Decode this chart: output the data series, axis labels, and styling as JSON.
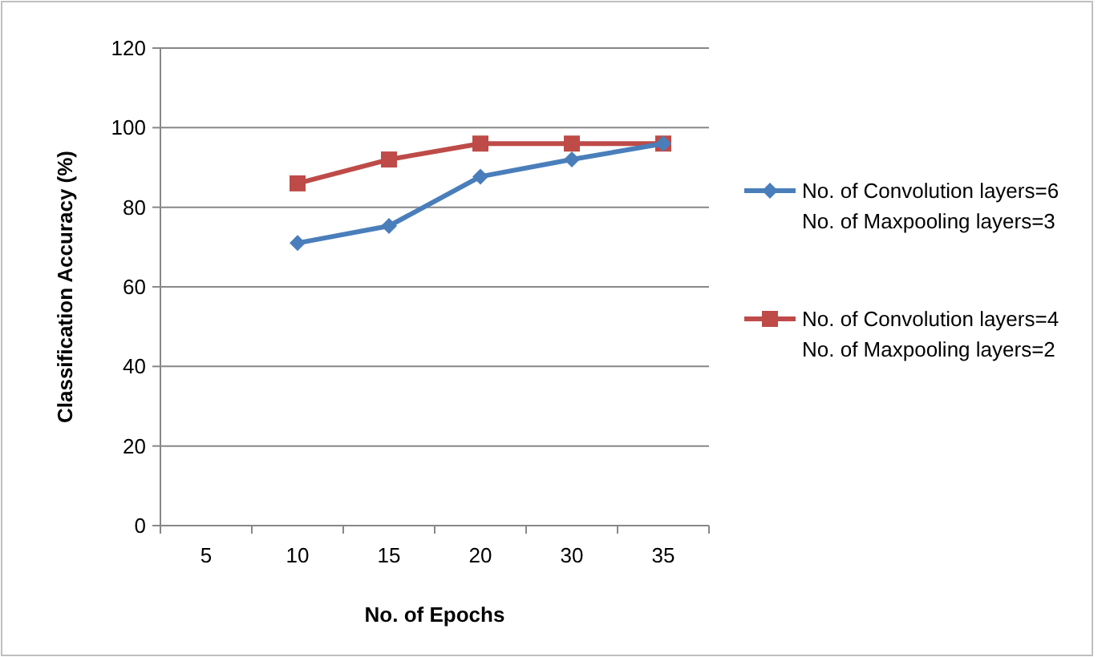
{
  "chart_data": {
    "type": "line",
    "xlabel": "No. of Epochs",
    "ylabel": "Classification Accuracy (%)",
    "categories": [
      "5",
      "10",
      "15",
      "20",
      "30",
      "35"
    ],
    "series": [
      {
        "name": "No. of Convolution layers=6\nNo. of Maxpooling layers=3",
        "color": "#4a7ebb",
        "marker": "diamond",
        "values": [
          null,
          71,
          75.3,
          87.7,
          92,
          96
        ]
      },
      {
        "name": "No. of Convolution layers=4\nNo. of Maxpooling layers=2",
        "color": "#be4b48",
        "marker": "square",
        "values": [
          null,
          86,
          92,
          96,
          96,
          96
        ]
      }
    ],
    "ylim": [
      0,
      120
    ],
    "yticks": [
      0,
      20,
      40,
      60,
      80,
      100,
      120
    ],
    "grid": "y",
    "legend": "right",
    "line_style": "solid"
  }
}
